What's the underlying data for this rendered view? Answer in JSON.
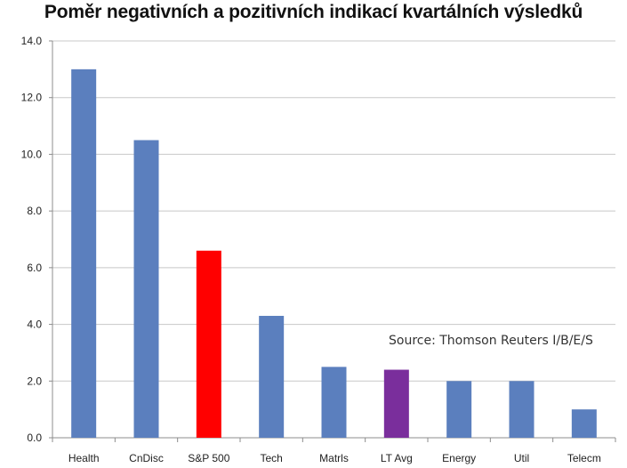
{
  "chart_data": {
    "type": "bar",
    "title": "Poměr negativních a pozitivních indikací kvartálních výsledků",
    "categories": [
      "Health",
      "CnDisc",
      "S&P 500",
      "Tech",
      "Matrls",
      "LT Avg",
      "Energy",
      "Util",
      "Telecm"
    ],
    "values": [
      13.0,
      10.5,
      6.6,
      4.3,
      2.5,
      2.4,
      2.0,
      2.0,
      1.0
    ],
    "bar_colors": [
      "#5B7FBE",
      "#5B7FBE",
      "#FF0000",
      "#5B7FBE",
      "#5B7FBE",
      "#7A2E9C",
      "#5B7FBE",
      "#5B7FBE",
      "#5B7FBE"
    ],
    "ylim": [
      0,
      14
    ],
    "yticks": [
      0,
      2,
      4,
      6,
      8,
      10,
      12,
      14
    ],
    "ytick_labels": [
      "0.0",
      "2.0",
      "4.0",
      "6.0",
      "8.0",
      "10.0",
      "12.0",
      "14.0"
    ],
    "xlabel": "",
    "ylabel": "",
    "grid": true,
    "legend": false,
    "annotation": "Source: Thomson Reuters I/B/E/S",
    "gridline_color": "#C8C8C8",
    "axis_color": "#8C8C8C"
  }
}
